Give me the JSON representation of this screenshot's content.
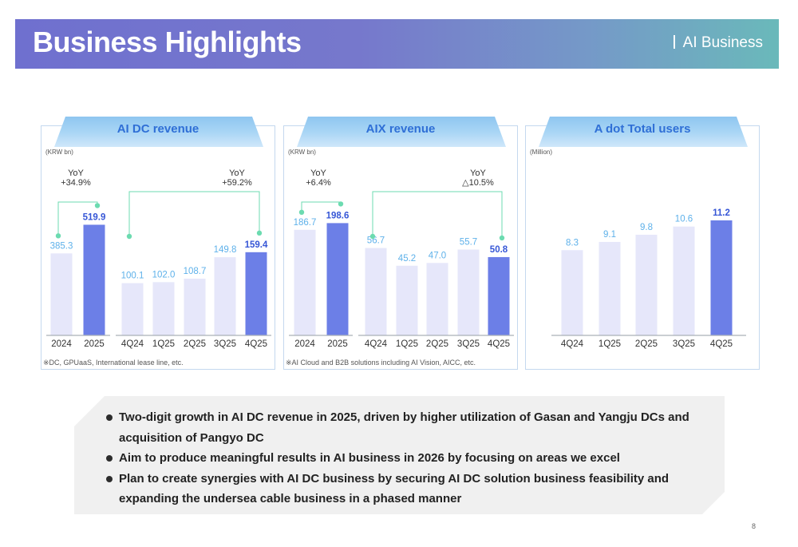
{
  "header": {
    "title": "Business Highlights",
    "section": "AI Business"
  },
  "colors": {
    "bar_light": "#e6e7fa",
    "bar_accent": "#6c7fe7",
    "value_light": "#5eb1ea",
    "value_accent": "#3656d6",
    "connector": "#6cdbb0",
    "axis": "#aab0b8"
  },
  "chart_data": [
    {
      "type": "bar",
      "title": "AI DC revenue",
      "unit": "(KRW bn)",
      "note": "※DC, GPUaaS, International lease line, etc.",
      "groups": [
        {
          "categories": [
            "2024",
            "2025"
          ],
          "values": [
            385.3,
            519.9
          ],
          "labels": [
            "385.3",
            "519.9"
          ],
          "highlight": [
            false,
            true
          ]
        },
        {
          "categories": [
            "4Q24",
            "1Q25",
            "2Q25",
            "3Q25",
            "4Q25"
          ],
          "values": [
            100.1,
            102.0,
            108.7,
            149.8,
            159.4
          ],
          "labels": [
            "100.1",
            "102.0",
            "108.7",
            "149.8",
            "159.4"
          ],
          "highlight": [
            false,
            false,
            false,
            false,
            true
          ]
        }
      ],
      "annotations": [
        {
          "line1": "YoY",
          "line2": "+34.9%"
        },
        {
          "line1": "YoY",
          "line2": "+59.2%"
        }
      ]
    },
    {
      "type": "bar",
      "title": "AIX revenue",
      "unit": "(KRW bn)",
      "note": "※AI Cloud and B2B solutions including AI Vision, AICC, etc.",
      "groups": [
        {
          "categories": [
            "2024",
            "2025"
          ],
          "values": [
            186.7,
            198.6
          ],
          "labels": [
            "186.7",
            "198.6"
          ],
          "highlight": [
            false,
            true
          ]
        },
        {
          "categories": [
            "4Q24",
            "1Q25",
            "2Q25",
            "3Q25",
            "4Q25"
          ],
          "values": [
            56.7,
            45.2,
            47.0,
            55.7,
            50.8
          ],
          "labels": [
            "56.7",
            "45.2",
            "47.0",
            "55.7",
            "50.8"
          ],
          "highlight": [
            false,
            false,
            false,
            false,
            true
          ]
        }
      ],
      "annotations": [
        {
          "line1": "YoY",
          "line2": "+6.4%"
        },
        {
          "line1": "YoY",
          "line2": "△10.5%"
        }
      ]
    },
    {
      "type": "bar",
      "title": "A dot Total users",
      "unit": "(Million)",
      "note": "",
      "groups": [
        {
          "categories": [
            "4Q24",
            "1Q25",
            "2Q25",
            "3Q25",
            "4Q25"
          ],
          "values": [
            8.3,
            9.1,
            9.8,
            10.6,
            11.2
          ],
          "labels": [
            "8.3",
            "9.1",
            "9.8",
            "10.6",
            "11.2"
          ],
          "highlight": [
            false,
            false,
            false,
            false,
            true
          ]
        }
      ],
      "annotations": []
    }
  ],
  "callout": {
    "bullets": [
      "Two-digit growth in AI DC revenue in 2025, driven by higher utilization of Gasan and Yangju DCs and acquisition of Pangyo DC",
      "Aim to produce meaningful results in AI business in 2026 by focusing on areas we excel",
      "Plan to create synergies with AI DC business by securing AI DC solution business feasibility and expanding the undersea cable business in a phased manner"
    ]
  },
  "page_number": "8"
}
